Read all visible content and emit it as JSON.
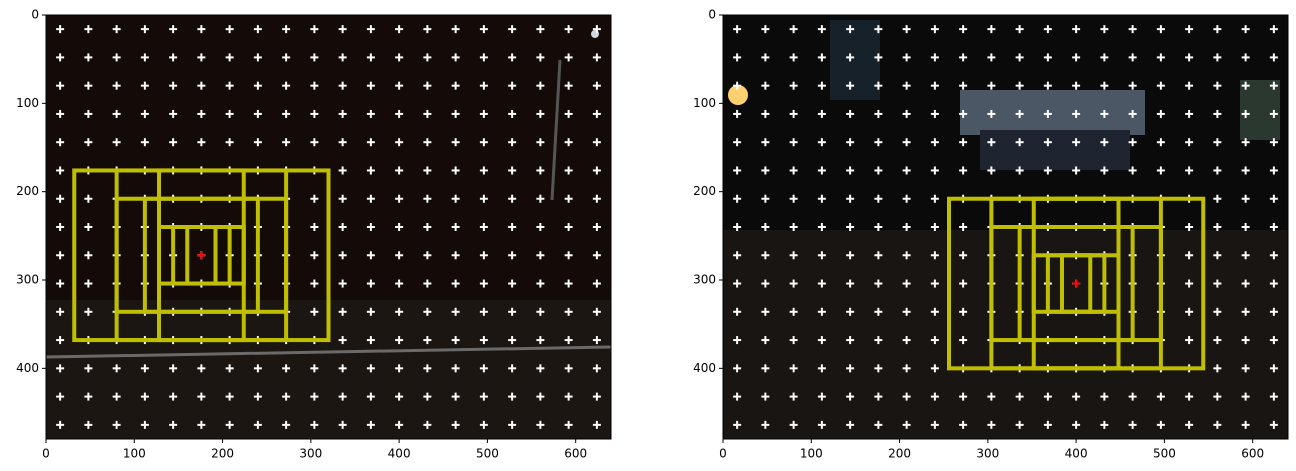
{
  "chart_data": [
    {
      "type": "image",
      "xlim": [
        0,
        640
      ],
      "ylim": [
        480,
        0
      ],
      "xticks": [
        0,
        100,
        200,
        300,
        400,
        500,
        600
      ],
      "yticks": [
        0,
        100,
        200,
        300,
        400
      ],
      "anchor_x": [
        16,
        48,
        80,
        112,
        144,
        176,
        208,
        240,
        272,
        304,
        336,
        368,
        400,
        432,
        464,
        496,
        528,
        560,
        592,
        624
      ],
      "anchor_y": [
        16,
        48,
        80,
        112,
        144,
        176,
        208,
        240,
        272,
        304,
        336,
        368,
        400,
        432,
        464
      ],
      "anchor_color": "#ffffff",
      "center": [
        176,
        272
      ],
      "center_color": "#ff0000",
      "box_color": "#bfbf00",
      "boxes": [
        [
          32,
          176,
          320,
          368
        ],
        [
          80,
          176,
          272,
          368
        ],
        [
          128,
          176,
          224,
          368
        ],
        [
          80,
          208,
          272,
          336
        ],
        [
          112,
          208,
          240,
          336
        ],
        [
          128,
          240,
          224,
          304
        ],
        [
          144,
          240,
          208,
          304
        ],
        [
          160,
          240,
          192,
          304
        ]
      ]
    },
    {
      "type": "image",
      "xlim": [
        0,
        640
      ],
      "ylim": [
        480,
        0
      ],
      "xticks": [
        0,
        100,
        200,
        300,
        400,
        500,
        600
      ],
      "yticks": [
        0,
        100,
        200,
        300,
        400
      ],
      "anchor_x": [
        16,
        48,
        80,
        112,
        144,
        176,
        208,
        240,
        272,
        304,
        336,
        368,
        400,
        432,
        464,
        496,
        528,
        560,
        592,
        624
      ],
      "anchor_y": [
        16,
        48,
        80,
        112,
        144,
        176,
        208,
        240,
        272,
        304,
        336,
        368,
        400,
        432,
        464
      ],
      "anchor_color": "#ffffff",
      "center": [
        400,
        304
      ],
      "center_color": "#ff0000",
      "box_color": "#bfbf00",
      "boxes": [
        [
          256,
          208,
          544,
          400
        ],
        [
          304,
          208,
          496,
          400
        ],
        [
          352,
          208,
          448,
          400
        ],
        [
          304,
          240,
          496,
          368
        ],
        [
          336,
          240,
          464,
          368
        ],
        [
          352,
          272,
          448,
          336
        ],
        [
          368,
          272,
          432,
          336
        ],
        [
          384,
          272,
          416,
          336
        ]
      ]
    }
  ]
}
